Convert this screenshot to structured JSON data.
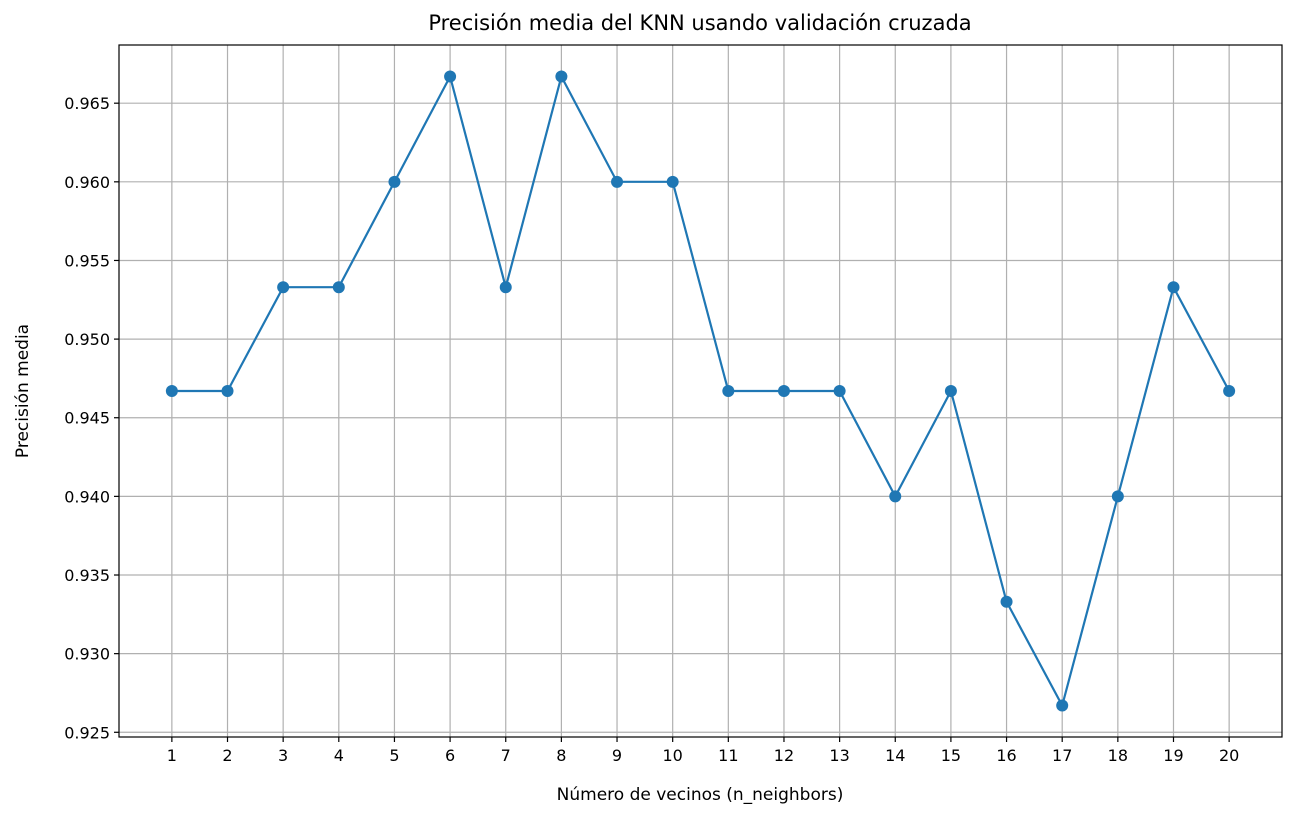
{
  "chart_data": {
    "type": "line",
    "title": "Precisión media del KNN usando validación cruzada",
    "xlabel": "Número de vecinos (n_neighbors)",
    "ylabel": "Precisión media",
    "x": [
      1,
      2,
      3,
      4,
      5,
      6,
      7,
      8,
      9,
      10,
      11,
      12,
      13,
      14,
      15,
      16,
      17,
      18,
      19,
      20
    ],
    "series": [
      {
        "values": [
          0.9467,
          0.9467,
          0.9533,
          0.9533,
          0.96,
          0.9667,
          0.9533,
          0.9667,
          0.96,
          0.96,
          0.9467,
          0.9467,
          0.9467,
          0.94,
          0.9467,
          0.9333,
          0.9267,
          0.94,
          0.9533,
          0.9467
        ],
        "color": "#1f77b4",
        "marker": "circle"
      }
    ],
    "xticks": [
      "1",
      "2",
      "3",
      "4",
      "5",
      "6",
      "7",
      "8",
      "9",
      "10",
      "11",
      "12",
      "13",
      "14",
      "15",
      "16",
      "17",
      "18",
      "19",
      "20"
    ],
    "yticks": [
      "0.925",
      "0.930",
      "0.935",
      "0.940",
      "0.945",
      "0.950",
      "0.955",
      "0.960",
      "0.965"
    ],
    "xlim": [
      0.05,
      20.95
    ],
    "ylim": [
      0.9247,
      0.9687
    ],
    "grid": true
  }
}
